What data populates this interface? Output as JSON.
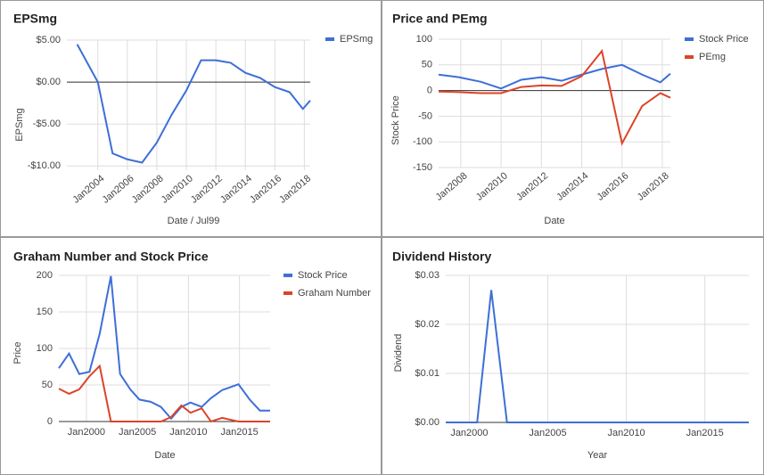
{
  "chart_data": [
    {
      "type": "line",
      "title": "EPSmg",
      "x_label": "Date / Jul99",
      "y_label": "EPSmg",
      "x": [
        2002.6,
        2004,
        2005,
        2006,
        2007,
        2008,
        2009,
        2010,
        2011,
        2012,
        2013,
        2014,
        2015,
        2016,
        2017,
        2017.9,
        2018.4
      ],
      "series": [
        {
          "name": "EPSmg",
          "color": "#3d6fd6",
          "values": [
            4.5,
            0,
            -8.5,
            -9.2,
            -9.6,
            -7.2,
            -3.9,
            -1.0,
            2.6,
            2.6,
            2.3,
            1.1,
            0.5,
            -0.6,
            -1.2,
            -3.2,
            -2.2
          ]
        }
      ],
      "xlim": [
        2001.9,
        2018.4
      ],
      "xticks": [
        {
          "value": 2004,
          "label": "Jan2004"
        },
        {
          "value": 2006,
          "label": "Jan2006"
        },
        {
          "value": 2008,
          "label": "Jan2008"
        },
        {
          "value": 2010,
          "label": "Jan2010"
        },
        {
          "value": 2012,
          "label": "Jan2012"
        },
        {
          "value": 2014,
          "label": "Jan2014"
        },
        {
          "value": 2016,
          "label": "Jan2016"
        },
        {
          "value": 2018,
          "label": "Jan2018"
        }
      ],
      "ylim": [
        -10.5,
        5
      ],
      "yticks": [
        {
          "value": 5,
          "label": "$5.00"
        },
        {
          "value": 0,
          "label": "$0.00"
        },
        {
          "value": -5,
          "label": "-$5.00"
        },
        {
          "value": -10,
          "label": "-$10.00"
        }
      ],
      "grid": true,
      "legend": "right"
    },
    {
      "type": "line",
      "title": "Price and PEmg",
      "x_label": "Date",
      "y_label": "Stock Price",
      "x": [
        2006.9,
        2007.9,
        2009,
        2010,
        2011,
        2012,
        2013,
        2014,
        2015,
        2016,
        2017,
        2017.9,
        2018.4
      ],
      "series": [
        {
          "name": "Stock Price",
          "color": "#3d6fd6",
          "values": [
            31,
            26,
            17,
            4,
            21,
            26,
            19,
            31,
            42,
            50,
            31,
            16,
            33
          ]
        },
        {
          "name": "PEmg",
          "color": "#dc4427",
          "values": [
            -2,
            -3,
            -5,
            -5,
            7,
            10,
            9,
            28,
            77,
            -103,
            -30,
            -5,
            -14
          ]
        }
      ],
      "xlim": [
        2006.9,
        2018.4
      ],
      "xticks": [
        {
          "value": 2008,
          "label": "Jan2008"
        },
        {
          "value": 2010,
          "label": "Jan2010"
        },
        {
          "value": 2012,
          "label": "Jan2012"
        },
        {
          "value": 2014,
          "label": "Jan2014"
        },
        {
          "value": 2016,
          "label": "Jan2016"
        },
        {
          "value": 2018,
          "label": "Jan2018"
        }
      ],
      "ylim": [
        -150,
        100
      ],
      "yticks": [
        100,
        50,
        0,
        -50,
        -100,
        -150
      ],
      "grid": true,
      "legend": "right"
    },
    {
      "type": "line",
      "title": "Graham Number and Stock Price",
      "x_label": "Date",
      "y_label": "Price",
      "x": [
        1997.3,
        1998.3,
        1999.3,
        2000.3,
        2001.3,
        2002.4,
        2003.3,
        2004.3,
        2005.2,
        2006.3,
        2007.3,
        2008.3,
        2009.3,
        2010.2,
        2011.3,
        2012.2,
        2013.3,
        2014.9,
        2016,
        2017,
        2018
      ],
      "series": [
        {
          "name": "Stock Price",
          "color": "#3d6fd6",
          "values": [
            73,
            93,
            65,
            68,
            120,
            199,
            65,
            44,
            30,
            27,
            20,
            4,
            20,
            26,
            20,
            32,
            43,
            51,
            30,
            15,
            15
          ]
        },
        {
          "name": "Graham Number",
          "color": "#dc4427",
          "values": [
            45,
            38,
            44,
            62,
            76,
            0,
            0,
            0,
            0,
            0,
            0,
            6,
            22,
            12,
            18,
            0,
            5,
            0,
            0,
            0,
            0
          ]
        }
      ],
      "xlim": [
        1997.3,
        2018
      ],
      "xticks": [
        {
          "value": 2000,
          "label": "Jan2000"
        },
        {
          "value": 2005,
          "label": "Jan2005"
        },
        {
          "value": 2010,
          "label": "Jan2010"
        },
        {
          "value": 2015,
          "label": "Jan2015"
        }
      ],
      "ylim": [
        0,
        200
      ],
      "yticks": [
        200,
        150,
        100,
        50,
        0
      ],
      "grid": true,
      "legend": "right"
    },
    {
      "type": "line",
      "title": "Dividend History",
      "x_label": "Year",
      "y_label": "Dividend",
      "x": [
        1998.5,
        2000.5,
        2001.4,
        2002.4,
        2017.8
      ],
      "series": [
        {
          "color": "#3d6fd6",
          "values": [
            0,
            0,
            0.027,
            0,
            0
          ]
        }
      ],
      "xlim": [
        1998.5,
        2017.8
      ],
      "xticks": [
        {
          "value": 2000,
          "label": "Jan2000"
        },
        {
          "value": 2005,
          "label": "Jan2005"
        },
        {
          "value": 2010,
          "label": "Jan2010"
        },
        {
          "value": 2015,
          "label": "Jan2015"
        }
      ],
      "ylim": [
        0,
        0.03
      ],
      "yticks": [
        {
          "value": 0.03,
          "label": "$0.03"
        },
        {
          "value": 0.02,
          "label": "$0.02"
        },
        {
          "value": 0.01,
          "label": "$0.01"
        },
        {
          "value": 0,
          "label": "$0.00"
        }
      ],
      "grid": true
    }
  ]
}
